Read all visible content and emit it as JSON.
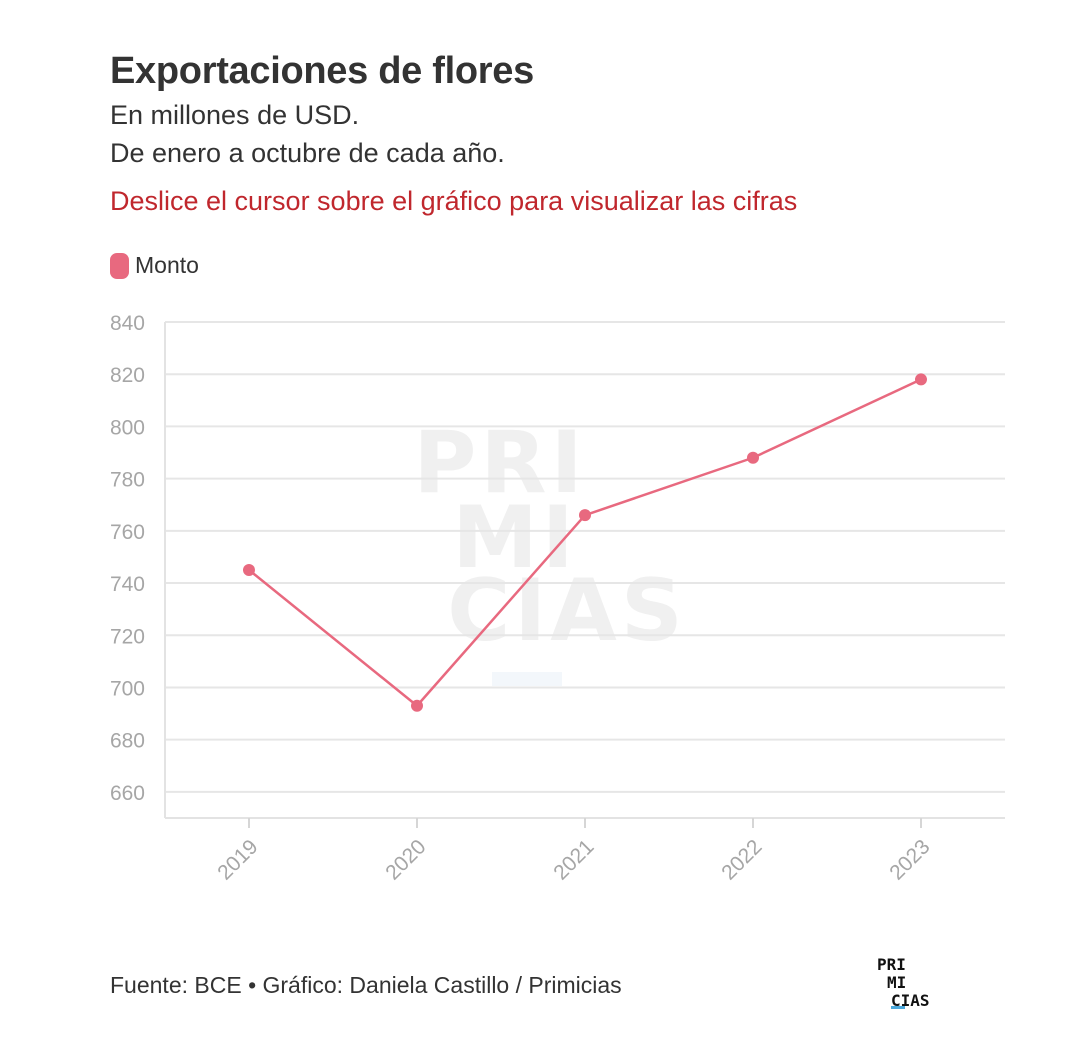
{
  "header": {
    "title": "Exportaciones de flores",
    "subtitle_line1": "En millones de USD.",
    "subtitle_line2": "De enero a octubre de cada año.",
    "hint": "Deslice el cursor sobre el gráfico para visualizar las cifras",
    "hint_color": "#c0272d"
  },
  "legend": {
    "label": "Monto",
    "color": "#e8697f"
  },
  "chart_data": {
    "type": "line",
    "title": "Exportaciones de flores",
    "subtitle": "En millones de USD. De enero a octubre de cada año.",
    "xlabel": "",
    "ylabel": "",
    "x": [
      "2019",
      "2020",
      "2021",
      "2022",
      "2023"
    ],
    "series": [
      {
        "name": "Monto",
        "color": "#e8697f",
        "values": [
          745,
          693,
          766,
          788,
          818
        ]
      }
    ],
    "ylim": [
      650,
      840
    ],
    "yticks": [
      660,
      680,
      700,
      720,
      740,
      760,
      780,
      800,
      820,
      840
    ],
    "grid": true,
    "legend_position": "top-left",
    "watermark": [
      "PRI",
      "MI",
      "CIAS"
    ]
  },
  "footer": {
    "source": "Fuente: BCE • Gráfico: Daniela Castillo / Primicias"
  },
  "logo": {
    "line1": "PRI",
    "line2": "MI",
    "line3": "CIAS",
    "accent_color": "#4aa8dc"
  }
}
